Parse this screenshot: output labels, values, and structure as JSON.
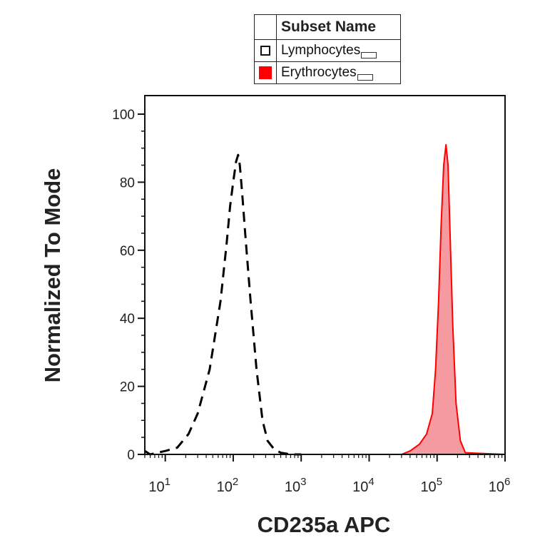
{
  "legend": {
    "header": "Subset Name",
    "items": [
      {
        "name": "Lymphocytes",
        "color": "#000000",
        "style": "dashed"
      },
      {
        "name": "Erythrocytes",
        "color": "#ff0000",
        "style": "filled"
      }
    ]
  },
  "chart_data": {
    "type": "area",
    "xlabel": "CD235a APC",
    "ylabel": "Normalized To Mode",
    "xscale": "log",
    "xlim": [
      5,
      1000000
    ],
    "ylim": [
      0,
      100
    ],
    "x_ticks": [
      "10^1",
      "10^2",
      "10^3",
      "10^4",
      "10^5",
      "10^6"
    ],
    "y_ticks": [
      0,
      20,
      40,
      60,
      80,
      100
    ],
    "series": [
      {
        "name": "Lymphocytes",
        "color": "#000000",
        "fill": false,
        "dashed": true,
        "x": [
          5,
          6,
          10,
          15,
          22,
          30,
          45,
          65,
          80,
          90,
          100,
          110,
          118,
          125,
          135,
          150,
          180,
          220,
          270,
          320,
          400,
          500,
          700,
          1000
        ],
        "y": [
          1,
          0,
          1,
          2,
          6,
          12,
          25,
          45,
          62,
          73,
          80,
          86,
          88,
          85,
          77,
          65,
          45,
          25,
          10,
          4,
          1.5,
          0.5,
          0,
          0
        ]
      },
      {
        "name": "Erythrocytes",
        "color": "#ff0000",
        "fill": true,
        "dashed": false,
        "x": [
          5,
          30000,
          40000,
          55000,
          70000,
          85000,
          95000,
          105000,
          115000,
          125000,
          135000,
          145000,
          155000,
          170000,
          190000,
          220000,
          260000,
          1000000
        ],
        "y": [
          0,
          0,
          1,
          3,
          6,
          12,
          25,
          45,
          68,
          85,
          91,
          85,
          65,
          38,
          15,
          4,
          0.5,
          0
        ]
      }
    ]
  }
}
